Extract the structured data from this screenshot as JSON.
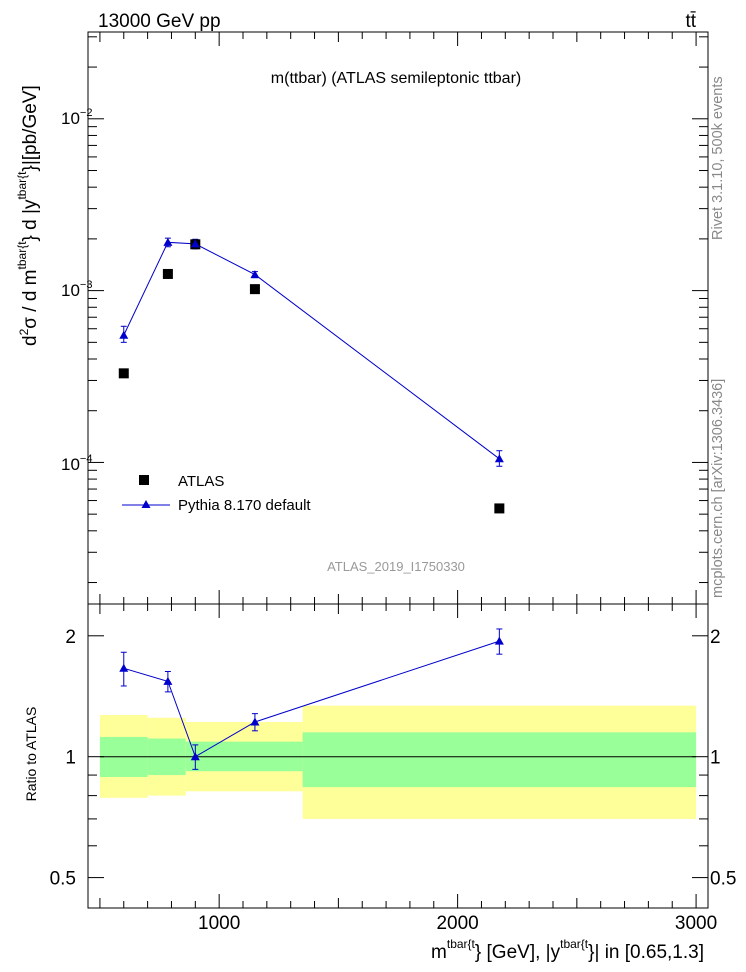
{
  "header": {
    "left": "13000 GeV pp",
    "right": "tt̄"
  },
  "side": {
    "rivet": "Rivet 3.1.10,  500k events",
    "site": "mcplots.cern.ch [arXiv:1306.3436]"
  },
  "colors": {
    "atlas": "#000000",
    "pythia": "#0000cc",
    "band_inner": "#99ff99",
    "band_outer": "#ffff99"
  },
  "chart_data": [
    {
      "type": "scatter",
      "title": "m(ttbar) (ATLAS semileptonic ttbar)",
      "watermark": "ATLAS_2019_I1750330",
      "ylabel_parts": {
        "d": "d",
        "sup2": "2",
        "sigma": "σ  /  d m",
        "supA": "tbar{t",
        "mid": "} d |y",
        "supB": "tbar{t",
        "end": "}|[pb/GeV]"
      },
      "xlim": [
        450,
        3050
      ],
      "ylim": [
        1.5e-05,
        0.032
      ],
      "yscale": "log",
      "ytick_labels": {
        "m4": "10",
        "m4e": "−4",
        "m3": "10",
        "m3e": "−3",
        "m2": "10",
        "m2e": "−2"
      },
      "legend": {
        "position": "bottom-left",
        "atlas": "ATLAS",
        "pythia": "Pythia 8.170 default"
      },
      "series": [
        {
          "name": "ATLAS",
          "marker": "square",
          "x": [
            600,
            785,
            900,
            1150,
            2175
          ],
          "y": [
            0.00033,
            0.00125,
            0.00186,
            0.00102,
            5.4e-05
          ]
        },
        {
          "name": "Pythia 8.170 default",
          "marker": "triangle",
          "x": [
            600,
            785,
            900,
            1150,
            2175
          ],
          "y": [
            0.00055,
            0.00191,
            0.00187,
            0.00124,
            0.000105
          ],
          "yerr_low": [
            5e-05,
            0.00011,
            0.00012,
            5e-05,
            1e-05
          ],
          "yerr_high": [
            7e-05,
            0.00011,
            0.00012,
            5e-05,
            1.2e-05
          ]
        }
      ]
    },
    {
      "type": "line",
      "ylabel": "Ratio to ATLAS",
      "xlabel_parts": {
        "m": "m",
        "supA": "tbar{t",
        "mid": "} [GeV], |y",
        "supB": "tbar{t",
        "end": "}| in [0.65,1.3]"
      },
      "xlim": [
        450,
        3050
      ],
      "ylim": [
        0.42,
        2.4
      ],
      "yscale": "log",
      "xticks": [
        1000,
        2000,
        3000
      ],
      "xtick_labels": [
        "1000",
        "2000",
        "3000"
      ],
      "yticks": [
        0.5,
        1,
        2
      ],
      "ytick_labels": [
        "0.5",
        "1",
        "2"
      ],
      "bands": [
        {
          "x0": 500,
          "x1": 700,
          "inner": [
            0.89,
            1.12
          ],
          "outer": [
            0.79,
            1.27
          ]
        },
        {
          "x0": 700,
          "x1": 860,
          "inner": [
            0.9,
            1.11
          ],
          "outer": [
            0.8,
            1.25
          ]
        },
        {
          "x0": 860,
          "x1": 1350,
          "inner": [
            0.92,
            1.09
          ],
          "outer": [
            0.82,
            1.22
          ]
        },
        {
          "x0": 1350,
          "x1": 3000,
          "inner": [
            0.84,
            1.15
          ],
          "outer": [
            0.7,
            1.34
          ]
        }
      ],
      "series": [
        {
          "name": "Pythia 8.170 default",
          "x": [
            600,
            785,
            900,
            1150,
            2175
          ],
          "y": [
            1.66,
            1.54,
            1.0,
            1.22,
            1.94
          ],
          "yerr_low": [
            0.16,
            0.09,
            0.07,
            0.06,
            0.14
          ],
          "yerr_high": [
            0.16,
            0.09,
            0.07,
            0.06,
            0.14
          ]
        }
      ]
    }
  ]
}
